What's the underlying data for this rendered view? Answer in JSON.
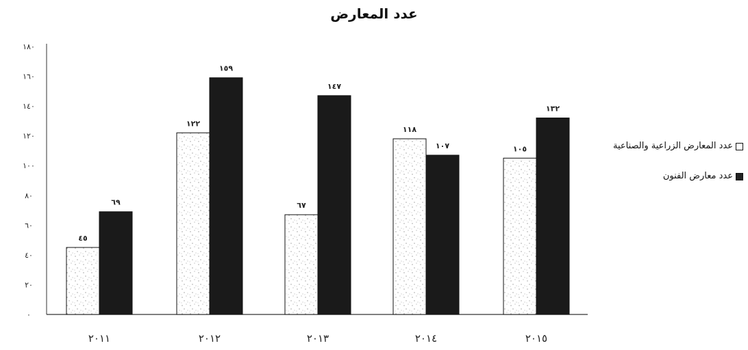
{
  "chart_data": {
    "type": "bar",
    "title": "عدد المعارض",
    "xlabel": "",
    "ylabel": "",
    "categories": [
      "٢٠١١",
      "٢٠١٢",
      "٢٠١٣",
      "٢٠١٤",
      "٢٠١٥"
    ],
    "series": [
      {
        "name": "عدد المعارض الزراعية والصناعية",
        "values": [
          45,
          122,
          67,
          118,
          105
        ],
        "value_labels": [
          "٤٥",
          "١٢٢",
          "٦٧",
          "١١٨",
          "١٠٥"
        ],
        "color": "#ffffff"
      },
      {
        "name": "عدد معارض الفنون",
        "values": [
          69,
          159,
          147,
          107,
          132
        ],
        "value_labels": [
          "٦٩",
          "١٥٩",
          "١٤٧",
          "١٠٧",
          "١٣٢"
        ],
        "color": "#1a1a1a"
      }
    ],
    "ylim": [
      0,
      180
    ],
    "yticks": [
      0,
      20,
      40,
      60,
      80,
      100,
      120,
      140,
      160,
      180
    ],
    "ytick_labels": [
      "٠",
      "٢٠",
      "٤٠",
      "٦٠",
      "٨٠",
      "١٠٠",
      "١٢٠",
      "١٤٠",
      "١٦٠",
      "١٨٠"
    ],
    "grid": false,
    "legend_position": "right"
  }
}
